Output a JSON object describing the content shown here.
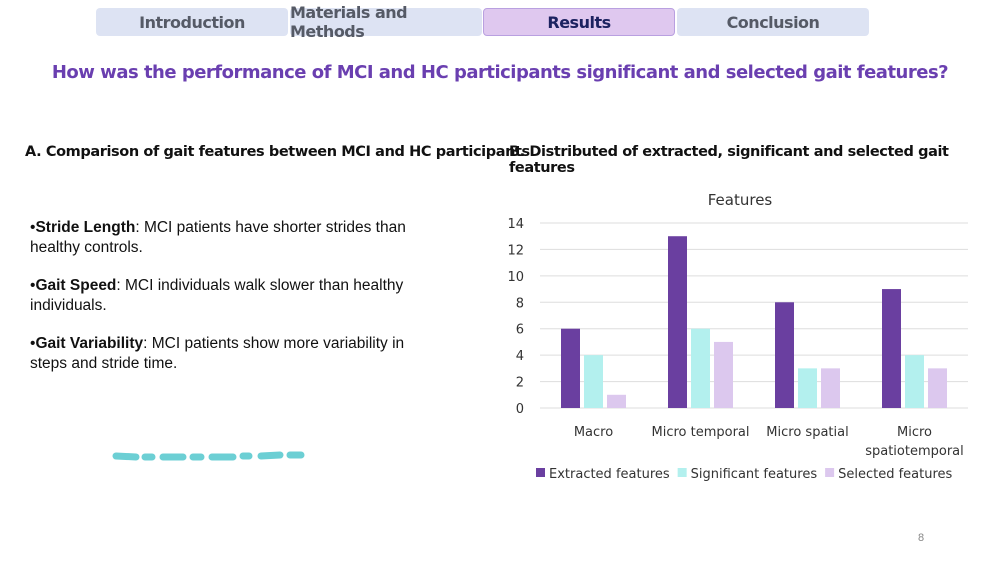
{
  "tabs": [
    {
      "label": "Introduction"
    },
    {
      "label": "Materials and Methods"
    },
    {
      "label": "Results",
      "active": true
    },
    {
      "label": "Conclusion"
    }
  ],
  "question": "How was the performance of MCI and HC participants significant and selected gait features?",
  "section_a": {
    "heading": "A. Comparison of gait features between MCI and HC participants",
    "bullets": [
      {
        "term": "Stride Length",
        "text": ": MCI patients have shorter strides than healthy controls."
      },
      {
        "term": "Gait Speed",
        "text": ": MCI individuals walk slower than healthy individuals."
      },
      {
        "term": "Gait Variability",
        "text": ": MCI patients show more variability in steps and stride time."
      }
    ]
  },
  "section_b": {
    "heading": "B. Distributed of extracted, significant and selected gait features"
  },
  "page_number": "8",
  "accent_color": "#6a3fb0",
  "chart_data": {
    "type": "bar",
    "title": "Features",
    "categories": [
      "Macro",
      "Micro temporal",
      "Micro spatial",
      "Micro spatiotemporal"
    ],
    "series": [
      {
        "name": "Extracted features",
        "values": [
          6,
          13,
          8,
          9
        ],
        "color": "#6a3fa0"
      },
      {
        "name": "Significant features",
        "values": [
          4,
          6,
          3,
          4
        ],
        "color": "#b3f0ee"
      },
      {
        "name": "Selected features",
        "values": [
          1,
          5,
          3,
          3
        ],
        "color": "#dcc8ee"
      }
    ],
    "ylim": [
      0,
      14
    ],
    "yticks": [
      0,
      2,
      4,
      6,
      8,
      10,
      12,
      14
    ],
    "grid": true,
    "legend": "bottom"
  }
}
